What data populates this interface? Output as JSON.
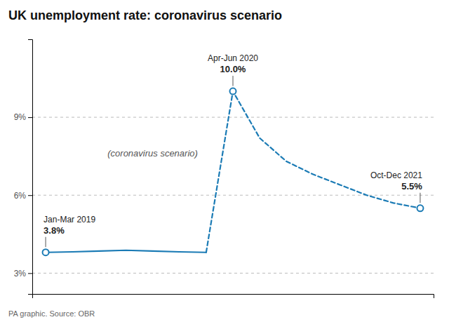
{
  "chart_data": {
    "type": "line",
    "title": "UK unemployment rate: coronavirus scenario",
    "footer": "PA graphic. Source: OBR",
    "annotation": "(coronavirus scenario)",
    "series": [
      {
        "x": [
          0,
          1,
          2,
          3,
          4,
          5,
          6
        ],
        "values": [
          3.8,
          3.82,
          3.85,
          3.88,
          3.85,
          3.82,
          3.8
        ],
        "value_labels": [
          "3.8%",
          null,
          null,
          null,
          null,
          null,
          null
        ],
        "point_labels": [
          "Jan-Mar 2019",
          null,
          null,
          null,
          null,
          null,
          null
        ],
        "color": "#1b7bb5",
        "line_style": "solid"
      },
      {
        "x": [
          6,
          7,
          8,
          9,
          10,
          11,
          12,
          13,
          14
        ],
        "values": [
          3.8,
          10.0,
          8.2,
          7.3,
          6.8,
          6.4,
          6.0,
          5.7,
          5.5
        ],
        "value_labels": [
          null,
          "10.0%",
          null,
          null,
          null,
          null,
          null,
          null,
          "5.5%"
        ],
        "point_labels": [
          null,
          "Apr-Jun 2020",
          null,
          null,
          null,
          null,
          null,
          null,
          "Oct-Dec 2021"
        ],
        "color": "#1b7bb5",
        "line_style": "dashed"
      }
    ],
    "xlim": [
      -0.5,
      14.5
    ],
    "xticks": [],
    "ylim": [
      2.2,
      12.0
    ],
    "yticks": [
      {
        "value": 3,
        "label": "3%"
      },
      {
        "value": 6,
        "label": "6%"
      },
      {
        "value": 9,
        "label": "9%"
      }
    ],
    "grid": true,
    "tick_labels": "y",
    "data_labels": true
  }
}
